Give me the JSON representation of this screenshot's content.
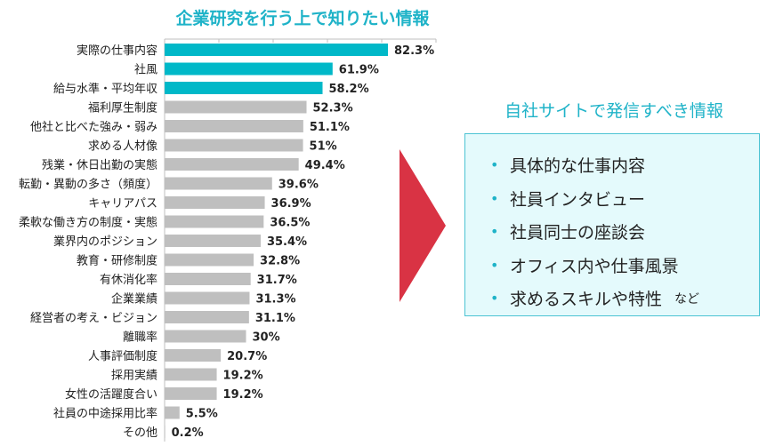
{
  "chart_data": {
    "type": "bar",
    "orientation": "horizontal",
    "title": "企業研究を行う上で知りたい情報",
    "categories": [
      "実際の仕事内容",
      "社風",
      "給与水準・平均年収",
      "福利厚生制度",
      "他社と比べた強み・弱み",
      "求める人材像",
      "残業・休日出勤の実態",
      "転勤・異動の多さ（頻度）",
      "キャリアパス",
      "柔軟な働き方の制度・実態",
      "業界内のポジション",
      "教育・研修制度",
      "有休消化率",
      "企業業績",
      "経営者の考え・ビジョン",
      "離職率",
      "人事評価制度",
      "採用実績",
      "女性の活躍度合い",
      "社員の中途採用比率",
      "その他"
    ],
    "values": [
      82.3,
      61.9,
      58.2,
      52.3,
      51.1,
      51,
      49.4,
      39.6,
      36.9,
      36.5,
      35.4,
      32.8,
      31.7,
      31.3,
      31.1,
      30,
      20.7,
      19.2,
      19.2,
      5.5,
      0.2
    ],
    "labels": [
      "82.3%",
      "61.9%",
      "58.2%",
      "52.3%",
      "51.1%",
      "51%",
      "49.4%",
      "39.6%",
      "36.9%",
      "36.5%",
      "35.4%",
      "32.8%",
      "31.7%",
      "31.3%",
      "31.1%",
      "30%",
      "20.7%",
      "19.2%",
      "19.2%",
      "5.5%",
      "0.2%"
    ],
    "xlim": [
      0,
      100
    ],
    "grid": true,
    "highlight_count": 3,
    "colors": {
      "highlight": "#00b8c8",
      "normal": "#bfbfbf",
      "grid": "#bfbfbf"
    }
  },
  "panel": {
    "title": "自社サイトで発信すべき情報",
    "items": [
      "具体的な仕事内容",
      "社員インタビュー",
      "社員同士の座談会",
      "オフィス内や仕事風景",
      "求めるスキルや特性"
    ],
    "suffix": "など",
    "arrow_color": "#d93344"
  }
}
